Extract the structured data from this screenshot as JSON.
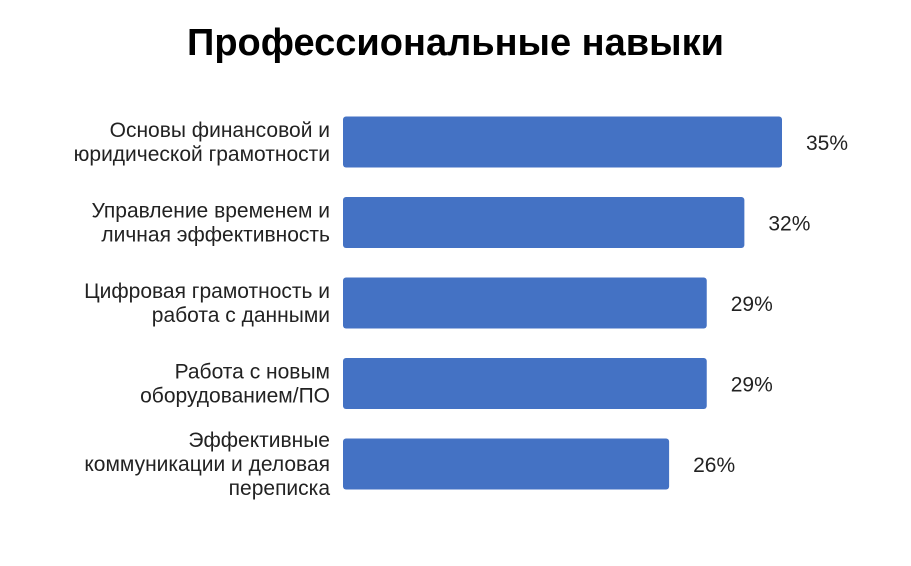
{
  "chart_data": {
    "type": "bar",
    "orientation": "horizontal",
    "title": "Профессиональные навыки",
    "categories": [
      [
        "Основы финансовой и",
        "юридической грамотности"
      ],
      [
        "Управление временем и",
        "личная эффективность"
      ],
      [
        "Цифровая грамотность и",
        "работа с данными"
      ],
      [
        "Работа с новым",
        "оборудованием/ПО"
      ],
      [
        "Эффективные",
        "коммуникации и деловая",
        "переписка"
      ]
    ],
    "values": [
      35,
      32,
      29,
      29,
      26
    ],
    "value_labels": [
      "35%",
      "32%",
      "29%",
      "29%",
      "26%"
    ],
    "unit": "%",
    "xlim": [
      0,
      35
    ],
    "grid": false,
    "legend": "none",
    "colors": {
      "bar": "#4472C4",
      "text": "#222222",
      "title": "#000000"
    }
  }
}
